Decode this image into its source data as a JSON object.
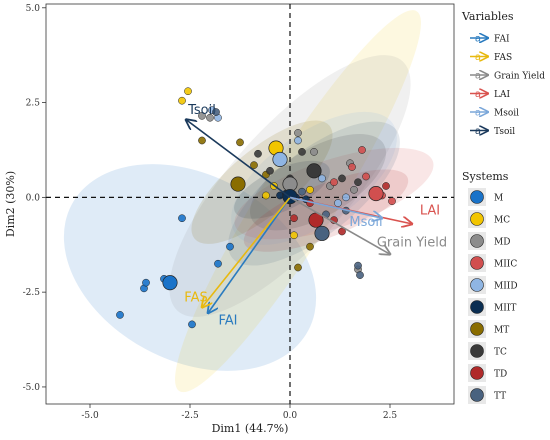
{
  "chart_data": {
    "type": "scatter",
    "subtype": "pca-biplot",
    "xlabel": "Dim1 (44.7%)",
    "ylabel": "Dim2 (30%)",
    "xlim": [
      -6.1,
      4.1
    ],
    "ylim": [
      -5.45,
      5.1
    ],
    "x_ticks": [
      {
        "value": -5.0,
        "label": "-5.0"
      },
      {
        "value": -2.5,
        "label": "-2.5"
      },
      {
        "value": 0.0,
        "label": "0.0"
      },
      {
        "value": 2.5,
        "label": "2.5"
      }
    ],
    "y_ticks": [
      {
        "value": 5.0,
        "label": "5.0"
      },
      {
        "value": 2.5,
        "label": "2.5"
      },
      {
        "value": 0.0,
        "label": "0.0"
      },
      {
        "value": -2.5,
        "label": "-2.5"
      },
      {
        "value": -5.0,
        "label": "-5.0"
      }
    ],
    "panel_background": "#ffffff",
    "reference_lines": {
      "x": 0,
      "y": 0,
      "style": "dashed"
    },
    "variables_legend_title": "Variables",
    "systems_legend_title": "Systems",
    "variables": [
      {
        "name": "FAI",
        "x": -2.05,
        "y": -3.05,
        "color": "#2a7bbf",
        "label": "FAI",
        "label_x": -1.55,
        "label_y": -3.35
      },
      {
        "name": "FAS",
        "x": -2.2,
        "y": -2.9,
        "color": "#e8b90f",
        "label": "FAS",
        "label_x": -2.35,
        "label_y": -2.75
      },
      {
        "name": "Grain Yield",
        "x": 2.5,
        "y": -1.5,
        "color": "#8a8a8a",
        "label": "Grain Yield",
        "label_x": 3.05,
        "label_y": -1.3
      },
      {
        "name": "LAI",
        "x": 3.05,
        "y": -0.7,
        "color": "#d9534f",
        "label": "LAI",
        "label_x": 3.5,
        "label_y": -0.45
      },
      {
        "name": "Msoil",
        "x": 2.3,
        "y": -0.55,
        "color": "#7ba7d9",
        "label": "Msoil",
        "label_x": 1.9,
        "label_y": -0.75
      },
      {
        "name": "Tsoil",
        "x": -2.6,
        "y": 2.05,
        "color": "#1b3a5c",
        "label": "Tsoil",
        "label_x": -2.2,
        "label_y": 2.2
      }
    ],
    "systems": [
      {
        "name": "M",
        "color": "#1a73c9",
        "ellipse": {
          "cx": -2.5,
          "cy": -1.85,
          "rx": 3.35,
          "ry": 2.45,
          "angle": 28,
          "opacity": 0.14
        },
        "points": [
          [
            -4.25,
            -3.1
          ],
          [
            -3.65,
            -2.4
          ],
          [
            -3.6,
            -2.25
          ],
          [
            -3.15,
            -2.15
          ],
          [
            -2.7,
            -0.55
          ],
          [
            -2.45,
            -3.35
          ],
          [
            -1.8,
            -1.75
          ],
          [
            -1.5,
            -1.3
          ]
        ],
        "centroid": [
          -3.0,
          -2.25
        ]
      },
      {
        "name": "MC",
        "color": "#f2c500",
        "ellipse": {
          "cx": 0.2,
          "cy": -0.1,
          "rx": 5.6,
          "ry": 1.0,
          "angle": -58,
          "opacity": 0.12
        },
        "points": [
          [
            -2.7,
            2.55
          ],
          [
            -2.55,
            2.8
          ],
          [
            -0.6,
            0.05
          ],
          [
            -0.4,
            0.3
          ],
          [
            0.1,
            -1.0
          ],
          [
            0.5,
            0.2
          ]
        ],
        "centroid": [
          -0.35,
          1.3
        ]
      },
      {
        "name": "MD",
        "color": "#8c8c8c",
        "ellipse": {
          "cx": 0.0,
          "cy": 0.3,
          "rx": 4.2,
          "ry": 1.55,
          "angle": -48,
          "opacity": 0.13
        },
        "points": [
          [
            -2.2,
            2.15
          ],
          [
            -2.0,
            2.1
          ],
          [
            0.2,
            1.7
          ],
          [
            0.6,
            1.2
          ],
          [
            1.0,
            0.3
          ],
          [
            1.5,
            0.9
          ],
          [
            1.6,
            0.2
          ],
          [
            1.7,
            -1.9
          ]
        ],
        "centroid": [
          0.0,
          0.35
        ]
      },
      {
        "name": "MIIC",
        "color": "#d14f4f",
        "ellipse": {
          "cx": 1.1,
          "cy": 0.1,
          "rx": 2.6,
          "ry": 0.9,
          "angle": -18,
          "opacity": 0.14
        },
        "points": [
          [
            1.1,
            0.4
          ],
          [
            1.55,
            0.8
          ],
          [
            1.9,
            0.55
          ],
          [
            2.3,
            0.05
          ],
          [
            2.55,
            -0.1
          ],
          [
            1.8,
            1.25
          ]
        ],
        "centroid": [
          2.15,
          0.1
        ]
      },
      {
        "name": "MIID",
        "color": "#8fb5e3",
        "ellipse": {
          "cx": 0.6,
          "cy": 0.5,
          "rx": 2.4,
          "ry": 1.2,
          "angle": -35,
          "opacity": 0.15
        },
        "points": [
          [
            -1.95,
            2.3
          ],
          [
            -1.8,
            2.1
          ],
          [
            0.2,
            1.5
          ],
          [
            0.8,
            0.5
          ],
          [
            1.2,
            -0.15
          ],
          [
            1.4,
            0.0
          ]
        ],
        "centroid": [
          -0.25,
          1.0
        ]
      },
      {
        "name": "MIIT",
        "color": "#0b2e52",
        "ellipse": {
          "cx": -0.2,
          "cy": 0.2,
          "rx": 1.3,
          "ry": 0.55,
          "angle": -25,
          "opacity": 0.16
        },
        "points": [
          [
            -0.25,
            0.05
          ],
          [
            -0.1,
            0.1
          ],
          [
            0.15,
            0.0
          ],
          [
            0.4,
            -0.05
          ]
        ],
        "centroid": [
          0.0,
          0.02
        ]
      },
      {
        "name": "MT",
        "color": "#8a6d00",
        "ellipse": {
          "cx": -0.7,
          "cy": 0.4,
          "rx": 2.2,
          "ry": 0.85,
          "angle": -40,
          "opacity": 0.14
        },
        "points": [
          [
            -2.2,
            1.5
          ],
          [
            -1.25,
            1.45
          ],
          [
            -0.9,
            0.85
          ],
          [
            -0.6,
            0.6
          ],
          [
            0.2,
            -1.85
          ],
          [
            0.5,
            -1.3
          ]
        ],
        "centroid": [
          -1.3,
          0.35
        ]
      },
      {
        "name": "TC",
        "color": "#3a3a3a",
        "ellipse": {
          "cx": 0.7,
          "cy": 0.4,
          "rx": 1.9,
          "ry": 0.9,
          "angle": -30,
          "opacity": 0.15
        },
        "points": [
          [
            -0.8,
            1.15
          ],
          [
            -0.5,
            0.7
          ],
          [
            0.0,
            0.5
          ],
          [
            0.3,
            1.2
          ],
          [
            1.3,
            0.5
          ],
          [
            1.7,
            0.4
          ]
        ],
        "centroid": [
          0.6,
          0.7
        ]
      },
      {
        "name": "TD",
        "color": "#b02a2a",
        "ellipse": {
          "cx": 0.9,
          "cy": -0.35,
          "rx": 2.2,
          "ry": 0.7,
          "angle": -22,
          "opacity": 0.14
        },
        "points": [
          [
            0.1,
            -0.55
          ],
          [
            0.5,
            -0.15
          ],
          [
            1.1,
            -0.6
          ],
          [
            1.3,
            -0.9
          ],
          [
            2.4,
            0.3
          ]
        ],
        "centroid": [
          0.65,
          -0.6
        ]
      },
      {
        "name": "TT",
        "color": "#49627f",
        "ellipse": {
          "cx": 0.6,
          "cy": 0.1,
          "rx": 2.6,
          "ry": 1.1,
          "angle": -38,
          "opacity": 0.14
        },
        "points": [
          [
            -1.85,
            2.25
          ],
          [
            0.3,
            0.15
          ],
          [
            0.9,
            -0.45
          ],
          [
            1.4,
            -0.35
          ],
          [
            1.7,
            -1.8
          ],
          [
            1.75,
            -2.05
          ]
        ],
        "centroid": [
          0.8,
          -0.95
        ]
      }
    ]
  }
}
